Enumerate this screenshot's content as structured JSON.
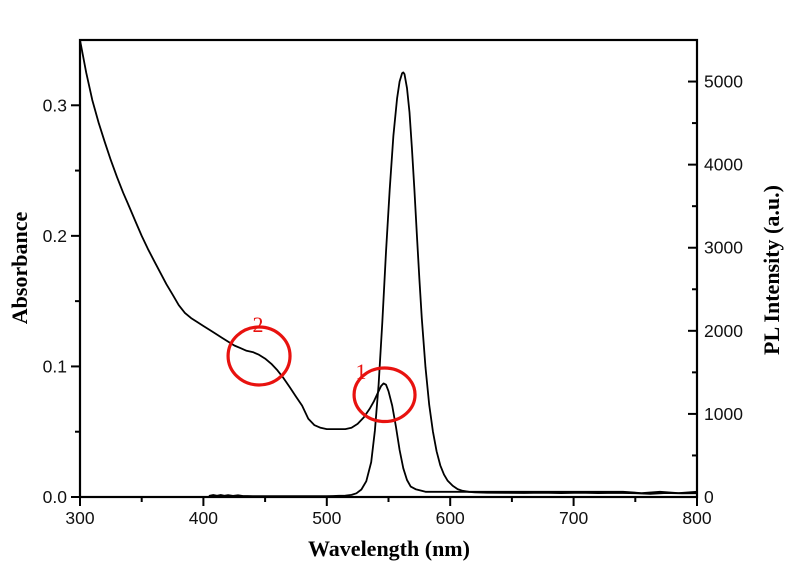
{
  "figure": {
    "background": "#ffffff",
    "curve_color": "#000000",
    "annotation_color": "#e8120f",
    "tick_label_color": "#111111"
  },
  "chart_data": {
    "type": "line",
    "title": "",
    "xlabel": "Wavelength (nm)",
    "ylabel_left": "Absorbance",
    "ylabel_right": "PL Intensity (a.u.)",
    "xlim": [
      300,
      800
    ],
    "ylim_left": [
      0,
      0.35
    ],
    "ylim_right": [
      0,
      5500
    ],
    "grid": false,
    "legend": "none",
    "x_ticks": [
      {
        "v": 300,
        "label": "300"
      },
      {
        "v": 400,
        "label": "400"
      },
      {
        "v": 500,
        "label": "500"
      },
      {
        "v": 600,
        "label": "600"
      },
      {
        "v": 700,
        "label": "700"
      },
      {
        "v": 800,
        "label": "800"
      }
    ],
    "x_minor_ticks": [
      350,
      450,
      550,
      650,
      750
    ],
    "left_ticks": [
      {
        "v": 0.0,
        "label": "0.0"
      },
      {
        "v": 0.1,
        "label": "0.1"
      },
      {
        "v": 0.2,
        "label": "0.2"
      },
      {
        "v": 0.3,
        "label": "0.3"
      }
    ],
    "left_minor_ticks": [
      0.05,
      0.15,
      0.25
    ],
    "right_ticks": [
      {
        "v": 0,
        "label": "0"
      },
      {
        "v": 1000,
        "label": "1000"
      },
      {
        "v": 2000,
        "label": "2000"
      },
      {
        "v": 3000,
        "label": "3000"
      },
      {
        "v": 4000,
        "label": "4000"
      },
      {
        "v": 5000,
        "label": "5000"
      }
    ],
    "right_minor_ticks": [
      500,
      1500,
      2500,
      3500,
      4500
    ],
    "series": [
      {
        "name": "absorbance-spectrum",
        "axis": "left",
        "color": "#000000",
        "points": [
          [
            300,
            0.35
          ],
          [
            305,
            0.325
          ],
          [
            310,
            0.304
          ],
          [
            315,
            0.287
          ],
          [
            320,
            0.272
          ],
          [
            325,
            0.258
          ],
          [
            330,
            0.245
          ],
          [
            335,
            0.233
          ],
          [
            340,
            0.222
          ],
          [
            345,
            0.211
          ],
          [
            350,
            0.2
          ],
          [
            355,
            0.19
          ],
          [
            360,
            0.181
          ],
          [
            365,
            0.172
          ],
          [
            370,
            0.163
          ],
          [
            375,
            0.155
          ],
          [
            380,
            0.147
          ],
          [
            385,
            0.141
          ],
          [
            390,
            0.137
          ],
          [
            395,
            0.134
          ],
          [
            400,
            0.131
          ],
          [
            405,
            0.128
          ],
          [
            410,
            0.125
          ],
          [
            415,
            0.122
          ],
          [
            420,
            0.119
          ],
          [
            425,
            0.116
          ],
          [
            430,
            0.114
          ],
          [
            435,
            0.112
          ],
          [
            440,
            0.111
          ],
          [
            445,
            0.109
          ],
          [
            450,
            0.106
          ],
          [
            455,
            0.102
          ],
          [
            460,
            0.097
          ],
          [
            465,
            0.091
          ],
          [
            470,
            0.084
          ],
          [
            475,
            0.077
          ],
          [
            480,
            0.07
          ],
          [
            485,
            0.06
          ],
          [
            490,
            0.055
          ],
          [
            495,
            0.053
          ],
          [
            500,
            0.052
          ],
          [
            505,
            0.052
          ],
          [
            510,
            0.052
          ],
          [
            515,
            0.052
          ],
          [
            520,
            0.053
          ],
          [
            525,
            0.056
          ],
          [
            530,
            0.061
          ],
          [
            535,
            0.068
          ],
          [
            538,
            0.073
          ],
          [
            541,
            0.079
          ],
          [
            544,
            0.085
          ],
          [
            546,
            0.087
          ],
          [
            548,
            0.086
          ],
          [
            550,
            0.081
          ],
          [
            553,
            0.07
          ],
          [
            556,
            0.054
          ],
          [
            559,
            0.036
          ],
          [
            562,
            0.022
          ],
          [
            565,
            0.013
          ],
          [
            568,
            0.008
          ],
          [
            572,
            0.006
          ],
          [
            576,
            0.005
          ],
          [
            580,
            0.004
          ],
          [
            600,
            0.004
          ],
          [
            620,
            0.004
          ],
          [
            640,
            0.004
          ],
          [
            660,
            0.004
          ],
          [
            680,
            0.004
          ],
          [
            700,
            0.004
          ],
          [
            720,
            0.004
          ],
          [
            740,
            0.004
          ],
          [
            755,
            0.003
          ],
          [
            770,
            0.004
          ],
          [
            785,
            0.003
          ],
          [
            800,
            0.004
          ]
        ]
      },
      {
        "name": "pl-emission-spectrum",
        "axis": "right",
        "color": "#000000",
        "points": [
          [
            405,
            15
          ],
          [
            408,
            24
          ],
          [
            411,
            14
          ],
          [
            414,
            24
          ],
          [
            417,
            14
          ],
          [
            420,
            22
          ],
          [
            424,
            13
          ],
          [
            428,
            20
          ],
          [
            432,
            12
          ],
          [
            436,
            12
          ],
          [
            440,
            11
          ],
          [
            450,
            10
          ],
          [
            460,
            10
          ],
          [
            470,
            10
          ],
          [
            480,
            10
          ],
          [
            490,
            10
          ],
          [
            500,
            11
          ],
          [
            505,
            12
          ],
          [
            510,
            14
          ],
          [
            515,
            17
          ],
          [
            520,
            25
          ],
          [
            524,
            45
          ],
          [
            528,
            90
          ],
          [
            532,
            190
          ],
          [
            536,
            420
          ],
          [
            539,
            800
          ],
          [
            542,
            1350
          ],
          [
            545,
            2100
          ],
          [
            548,
            2950
          ],
          [
            551,
            3700
          ],
          [
            554,
            4350
          ],
          [
            557,
            4800
          ],
          [
            559,
            5000
          ],
          [
            561,
            5100
          ],
          [
            562,
            5110
          ],
          [
            563,
            5090
          ],
          [
            565,
            4920
          ],
          [
            567,
            4630
          ],
          [
            569,
            4200
          ],
          [
            571,
            3700
          ],
          [
            573,
            3150
          ],
          [
            575,
            2620
          ],
          [
            577,
            2150
          ],
          [
            580,
            1560
          ],
          [
            583,
            1110
          ],
          [
            586,
            790
          ],
          [
            589,
            550
          ],
          [
            592,
            380
          ],
          [
            595,
            270
          ],
          [
            598,
            195
          ],
          [
            602,
            135
          ],
          [
            606,
            95
          ],
          [
            610,
            75
          ],
          [
            615,
            62
          ],
          [
            620,
            56
          ],
          [
            630,
            52
          ],
          [
            645,
            50
          ],
          [
            660,
            48
          ],
          [
            675,
            52
          ],
          [
            690,
            47
          ],
          [
            705,
            52
          ],
          [
            720,
            47
          ],
          [
            735,
            50
          ],
          [
            750,
            46
          ],
          [
            762,
            38
          ],
          [
            775,
            48
          ],
          [
            788,
            44
          ],
          [
            800,
            46
          ]
        ]
      }
    ],
    "annotations": [
      {
        "label": "1",
        "cx_nm": 546.8,
        "cy_abs": 0.0783,
        "rx_nm": 24.7,
        "ry_abs": 0.0205,
        "label_nm": 527.7,
        "label_abs": 0.0957
      },
      {
        "label": "2",
        "cx_nm": 445.1,
        "cy_abs": 0.108,
        "rx_nm": 25.1,
        "ry_abs": 0.0222,
        "label_nm": 444.2,
        "label_abs": 0.1317
      }
    ]
  }
}
